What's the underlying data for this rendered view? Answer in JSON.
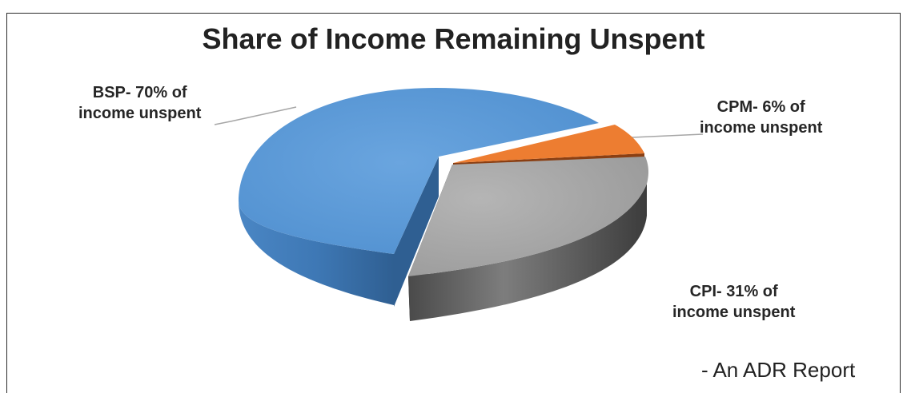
{
  "chart_data": {
    "type": "pie",
    "title": "Share of Income Remaining Unspent",
    "categories": [
      "BSP",
      "CPM",
      "CPI"
    ],
    "values": [
      70,
      6,
      31
    ],
    "data_labels": [
      {
        "line1": "BSP- 70% of",
        "line2": "income unspent"
      },
      {
        "line1": "CPM- 6% of",
        "line2": "income unspent"
      },
      {
        "line1": "CPI- 31% of",
        "line2": "income unspent"
      }
    ],
    "colors": {
      "BSP": "#5b9bd5",
      "CPM": "#ed7d31",
      "CPI": "#a5a5a5"
    },
    "exploded": true,
    "style": "3d"
  },
  "source_note": "- An ADR Report"
}
